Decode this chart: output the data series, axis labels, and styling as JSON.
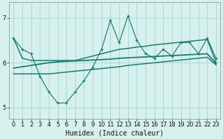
{
  "title": "",
  "xlabel": "Humidex (Indice chaleur)",
  "ylabel": "",
  "bg_color": "#d6f0ed",
  "grid_color": "#add8d4",
  "line_color": "#1a7a6e",
  "x": [
    0,
    1,
    2,
    3,
    4,
    5,
    6,
    7,
    8,
    9,
    10,
    11,
    12,
    13,
    14,
    15,
    16,
    17,
    18,
    19,
    20,
    21,
    22,
    23
  ],
  "y_main": [
    6.55,
    6.3,
    6.2,
    5.7,
    5.35,
    5.1,
    5.1,
    5.35,
    5.6,
    5.9,
    6.3,
    6.95,
    6.45,
    7.05,
    6.5,
    6.2,
    6.1,
    6.3,
    6.15,
    6.45,
    6.45,
    6.2,
    6.55,
    6.1
  ],
  "y_upper": [
    6.55,
    6.1,
    6.05,
    6.05,
    6.05,
    6.05,
    6.05,
    6.05,
    6.1,
    6.15,
    6.2,
    6.25,
    6.3,
    6.32,
    6.35,
    6.37,
    6.4,
    6.42,
    6.44,
    6.46,
    6.48,
    6.5,
    6.52,
    6.0
  ],
  "y_lower": [
    5.75,
    5.75,
    5.75,
    5.75,
    5.75,
    5.77,
    5.79,
    5.81,
    5.83,
    5.85,
    5.87,
    5.89,
    5.91,
    5.94,
    5.96,
    5.98,
    6.0,
    6.02,
    6.04,
    6.06,
    6.08,
    6.1,
    6.12,
    5.95
  ],
  "y_trend": [
    5.88,
    5.91,
    5.94,
    5.97,
    6.0,
    6.02,
    6.03,
    6.04,
    6.05,
    6.06,
    6.07,
    6.08,
    6.1,
    6.11,
    6.12,
    6.13,
    6.14,
    6.15,
    6.16,
    6.17,
    6.18,
    6.19,
    6.2,
    5.98
  ],
  "ylim": [
    4.75,
    7.35
  ],
  "yticks": [
    5,
    6,
    7
  ],
  "xlim": [
    -0.5,
    23.5
  ],
  "xticks": [
    0,
    1,
    2,
    3,
    4,
    5,
    6,
    7,
    8,
    9,
    10,
    11,
    12,
    13,
    14,
    15,
    16,
    17,
    18,
    19,
    20,
    21,
    22,
    23
  ],
  "tick_fontsize": 6,
  "xlabel_fontsize": 7
}
